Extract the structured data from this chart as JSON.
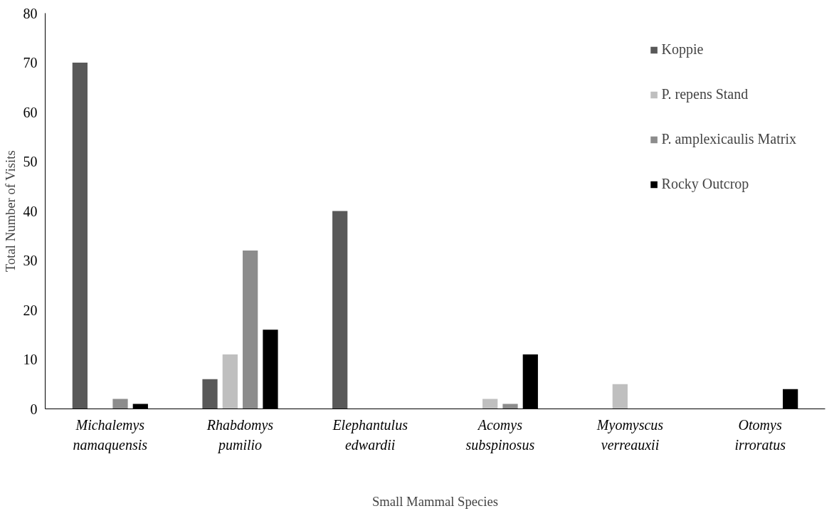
{
  "chart_data": {
    "type": "bar",
    "xlabel": "Small Mammal Species",
    "ylabel": "Total Number of Visits",
    "categories": [
      "Michalemys namaquensis",
      "Rhabdomys pumilio",
      "Elephantulus edwardii",
      "Acomys subspinosus",
      "Myomyscus verreauxii",
      "Otomys irroratus"
    ],
    "series": [
      {
        "name": "Koppie",
        "color": "#595959",
        "values": [
          70,
          6,
          40,
          0,
          0,
          0
        ]
      },
      {
        "name": "P. repens Stand",
        "color": "#bfbfbf",
        "values": [
          0,
          11,
          0,
          2,
          5,
          0
        ]
      },
      {
        "name": "P. amplexicaulis Matrix",
        "color": "#8c8c8c",
        "values": [
          2,
          32,
          0,
          1,
          0,
          0
        ]
      },
      {
        "name": "Rocky Outcrop",
        "color": "#000000",
        "values": [
          1,
          16,
          0,
          11,
          0,
          4
        ]
      }
    ],
    "ylim": [
      0,
      80
    ],
    "yticks": [
      0,
      10,
      20,
      30,
      40,
      50,
      60,
      70,
      80
    ],
    "legend": "top right",
    "grid": false
  }
}
